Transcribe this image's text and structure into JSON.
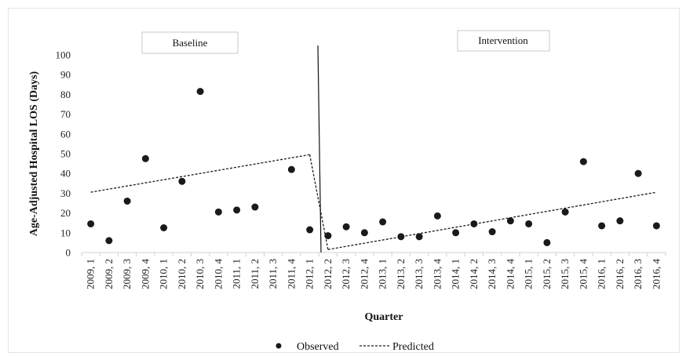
{
  "chart_data": {
    "type": "scatter",
    "xlabel": "Quarter",
    "ylabel": "Age-Adjusted Hospital LOS (Days)",
    "ylim": [
      0,
      100
    ],
    "yticks": [
      0,
      10,
      20,
      30,
      40,
      50,
      60,
      70,
      80,
      90,
      100
    ],
    "grid": false,
    "legend_position": "bottom",
    "categories": [
      "2009, 1",
      "2009, 2",
      "2009, 3",
      "2009, 4",
      "2010, 1",
      "2010, 2",
      "2010, 3",
      "2010, 4",
      "2011, 1",
      "2011, 2",
      "2011, 3",
      "2011, 4",
      "2012, 1",
      "2012, 2",
      "2012, 3",
      "2012, 4",
      "2013, 1",
      "2013, 2",
      "2013, 3",
      "2013, 4",
      "2014, 1",
      "2014, 2",
      "2014, 3",
      "2014, 4",
      "2015, 1",
      "2015, 2",
      "2015, 3",
      "2015, 4",
      "2016, 1",
      "2016, 2",
      "2016, 3",
      "2016, 4"
    ],
    "series": [
      {
        "name": "Observed",
        "marker": "circle",
        "color": "#1a1a1a",
        "values": [
          14.5,
          6,
          26,
          47.5,
          12.5,
          36,
          81.5,
          20.5,
          21.5,
          23,
          null,
          42,
          11.5,
          8.5,
          13,
          10,
          15.5,
          8,
          8,
          18.5,
          10,
          14.5,
          10.5,
          16,
          14.5,
          5,
          20.5,
          46,
          13.5,
          16,
          40,
          13.5
        ]
      },
      {
        "name": "Predicted",
        "line_style": "dashed",
        "color": "#1a1a1a",
        "segments": [
          {
            "x": [
              "2009, 1",
              "2012, 1"
            ],
            "y": [
              30.5,
              49.5
            ]
          },
          {
            "x": [
              "2012, 1",
              "2012, 2"
            ],
            "y": [
              49.5,
              1.5
            ]
          },
          {
            "x": [
              "2012, 2",
              "2016, 4"
            ],
            "y": [
              1.5,
              30.5
            ]
          }
        ]
      }
    ],
    "annotations": {
      "baseline_label": "Baseline",
      "intervention_label": "Intervention",
      "intervention_line": "between 2012, 1 and 2012, 2",
      "intervention_line_color": "#111111"
    }
  }
}
